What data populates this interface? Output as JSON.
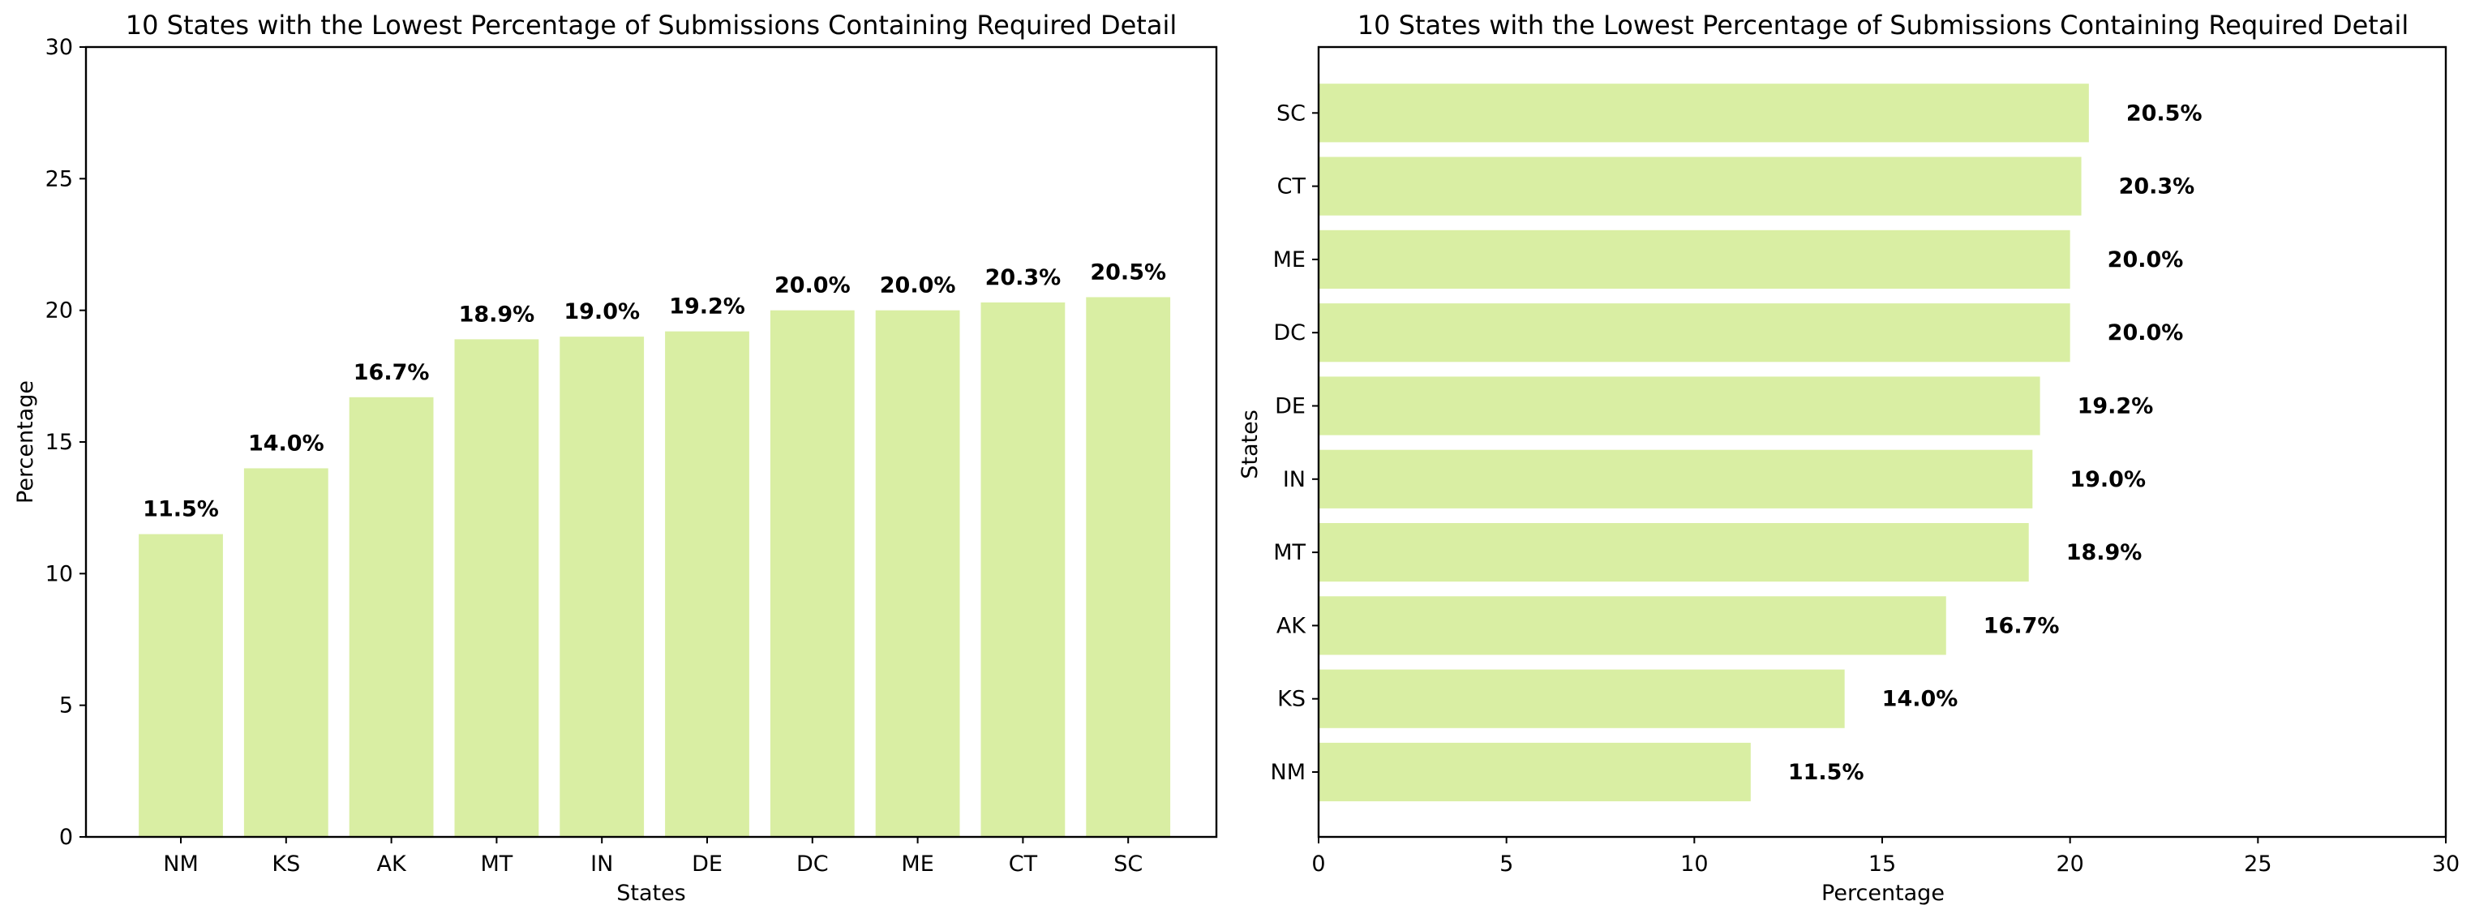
{
  "figure": {
    "bar_color": "#d9eea3"
  },
  "chart_data": [
    {
      "type": "bar",
      "orientation": "vertical",
      "title": "10 States with the Lowest Percentage of Submissions Containing Required Detail",
      "xlabel": "States",
      "ylabel": "Percentage",
      "categories": [
        "NM",
        "KS",
        "AK",
        "MT",
        "IN",
        "DE",
        "DC",
        "ME",
        "CT",
        "SC"
      ],
      "values": [
        11.5,
        14.0,
        16.7,
        18.9,
        19.0,
        19.2,
        20.0,
        20.0,
        20.3,
        20.5
      ],
      "data_labels": [
        "11.5%",
        "14.0%",
        "16.7%",
        "18.9%",
        "19.0%",
        "19.2%",
        "20.0%",
        "20.0%",
        "20.3%",
        "20.5%"
      ],
      "ylim": [
        0,
        30
      ],
      "yticks": [
        0,
        5,
        10,
        15,
        20,
        25,
        30
      ],
      "grid": false,
      "legend": "none"
    },
    {
      "type": "bar",
      "orientation": "horizontal",
      "title": "10 States with the Lowest Percentage of Submissions Containing Required Detail",
      "xlabel": "Percentage",
      "ylabel": "States",
      "categories": [
        "NM",
        "KS",
        "AK",
        "MT",
        "IN",
        "DE",
        "DC",
        "ME",
        "CT",
        "SC"
      ],
      "values": [
        11.5,
        14.0,
        16.7,
        18.9,
        19.0,
        19.2,
        20.0,
        20.0,
        20.3,
        20.5
      ],
      "data_labels": [
        "11.5%",
        "14.0%",
        "16.7%",
        "18.9%",
        "19.0%",
        "19.2%",
        "20.0%",
        "20.0%",
        "20.3%",
        "20.5%"
      ],
      "xlim": [
        0,
        30
      ],
      "xticks": [
        0,
        5,
        10,
        15,
        20,
        25,
        30
      ],
      "grid": false,
      "legend": "none"
    }
  ]
}
